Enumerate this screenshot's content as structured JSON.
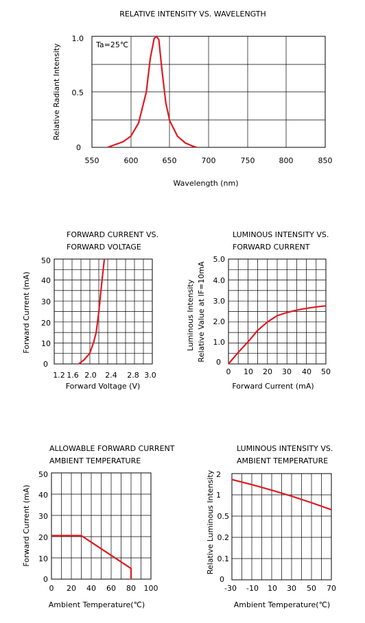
{
  "chart_data": [
    {
      "type": "line",
      "title": "RELATIVE INTENSITY VS. WAVELENGTH",
      "xlabel": "Wavelength (nm)",
      "ylabel": "Relative Radiant Intensity",
      "annotation": "Ta=25℃",
      "xlim": [
        550,
        850
      ],
      "ylim": [
        0,
        1.0
      ],
      "xticks": [
        "550",
        "600",
        "650",
        "700",
        "750",
        "800",
        "850"
      ],
      "yticks": [
        "0",
        "0.5",
        "1.0"
      ],
      "series": [
        {
          "x": [
            570,
            590,
            600,
            610,
            620,
            625,
            630,
            633,
            636,
            640,
            645,
            650,
            660,
            670,
            680,
            685
          ],
          "y": [
            0.0,
            0.05,
            0.1,
            0.22,
            0.5,
            0.8,
            0.98,
            1.0,
            0.97,
            0.7,
            0.4,
            0.24,
            0.1,
            0.04,
            0.01,
            0.0
          ]
        }
      ]
    },
    {
      "type": "line",
      "title": "FORWARD CURRENT VS.",
      "title2": "FORWARD VOLTAGE",
      "xlabel": "Forward Voltage (V)",
      "ylabel": "Forward Current (mA)",
      "xlim": [
        1.2,
        3.0
      ],
      "ylim": [
        0,
        50
      ],
      "xticks": [
        "1.2",
        "1.6",
        "2.0",
        "2.4",
        "2.8",
        "3.0"
      ],
      "yticks": [
        "0",
        "10",
        "20",
        "30",
        "40",
        "50"
      ],
      "series": [
        {
          "x": [
            1.65,
            1.75,
            1.85,
            1.92,
            1.97,
            2.02,
            2.07,
            2.12
          ],
          "y": [
            0,
            2,
            5,
            10,
            15,
            25,
            38,
            50
          ]
        }
      ]
    },
    {
      "type": "line",
      "title": "LUMINOUS INTENSITY VS.",
      "title2": "FORWARD CURRENT",
      "xlabel": "Forward Current (mA)",
      "ylabel": "Luminous Intensity",
      "ylabel2": "Relative Value at IF=10mA",
      "xlim": [
        0,
        50
      ],
      "ylim": [
        0,
        5.0
      ],
      "xticks": [
        "0",
        "10",
        "20",
        "30",
        "40",
        "50"
      ],
      "yticks": [
        "0",
        "1.0",
        "2.0",
        "3.0",
        "4.0",
        "5.0"
      ],
      "series": [
        {
          "x": [
            0,
            5,
            10,
            15,
            20,
            25,
            30,
            35,
            40,
            45,
            50
          ],
          "y": [
            0,
            0.55,
            1.05,
            1.6,
            2.0,
            2.3,
            2.45,
            2.57,
            2.65,
            2.72,
            2.77
          ]
        }
      ]
    },
    {
      "type": "line",
      "title": "ALLOWABLE FORWARD CURRENT",
      "title2": "AMBIENT TEMPERATURE",
      "xlabel": "Ambient Temperature(℃)",
      "ylabel": "Forward Current (mA)",
      "xlim": [
        0,
        100
      ],
      "ylim": [
        0,
        50
      ],
      "xticks": [
        "0",
        "20",
        "40",
        "60",
        "80",
        "100"
      ],
      "yticks": [
        "0",
        "10",
        "20",
        "30",
        "40",
        "50"
      ],
      "series": [
        {
          "x": [
            0,
            30,
            80,
            80
          ],
          "y": [
            20.5,
            20.5,
            5,
            0
          ]
        }
      ]
    },
    {
      "type": "line",
      "title": "LUMINOUS INTENSITY VS.",
      "title2": "AMBIENT TEMPERATURE",
      "xlabel": "Ambient Temperature(℃)",
      "ylabel": "Relative  Luminous Intensity",
      "xlim": [
        -30,
        70
      ],
      "xticks": [
        "-30",
        "-10",
        "10",
        "30",
        "50",
        "70"
      ],
      "yticks": [
        "0",
        "0.1",
        "0.2",
        "0.5",
        "1",
        "2"
      ],
      "series": [
        {
          "x": [
            -30,
            -10,
            10,
            30,
            50,
            70
          ],
          "y": [
            1.72,
            1.48,
            1.22,
            0.94,
            0.63,
            0.3
          ]
        }
      ]
    }
  ]
}
